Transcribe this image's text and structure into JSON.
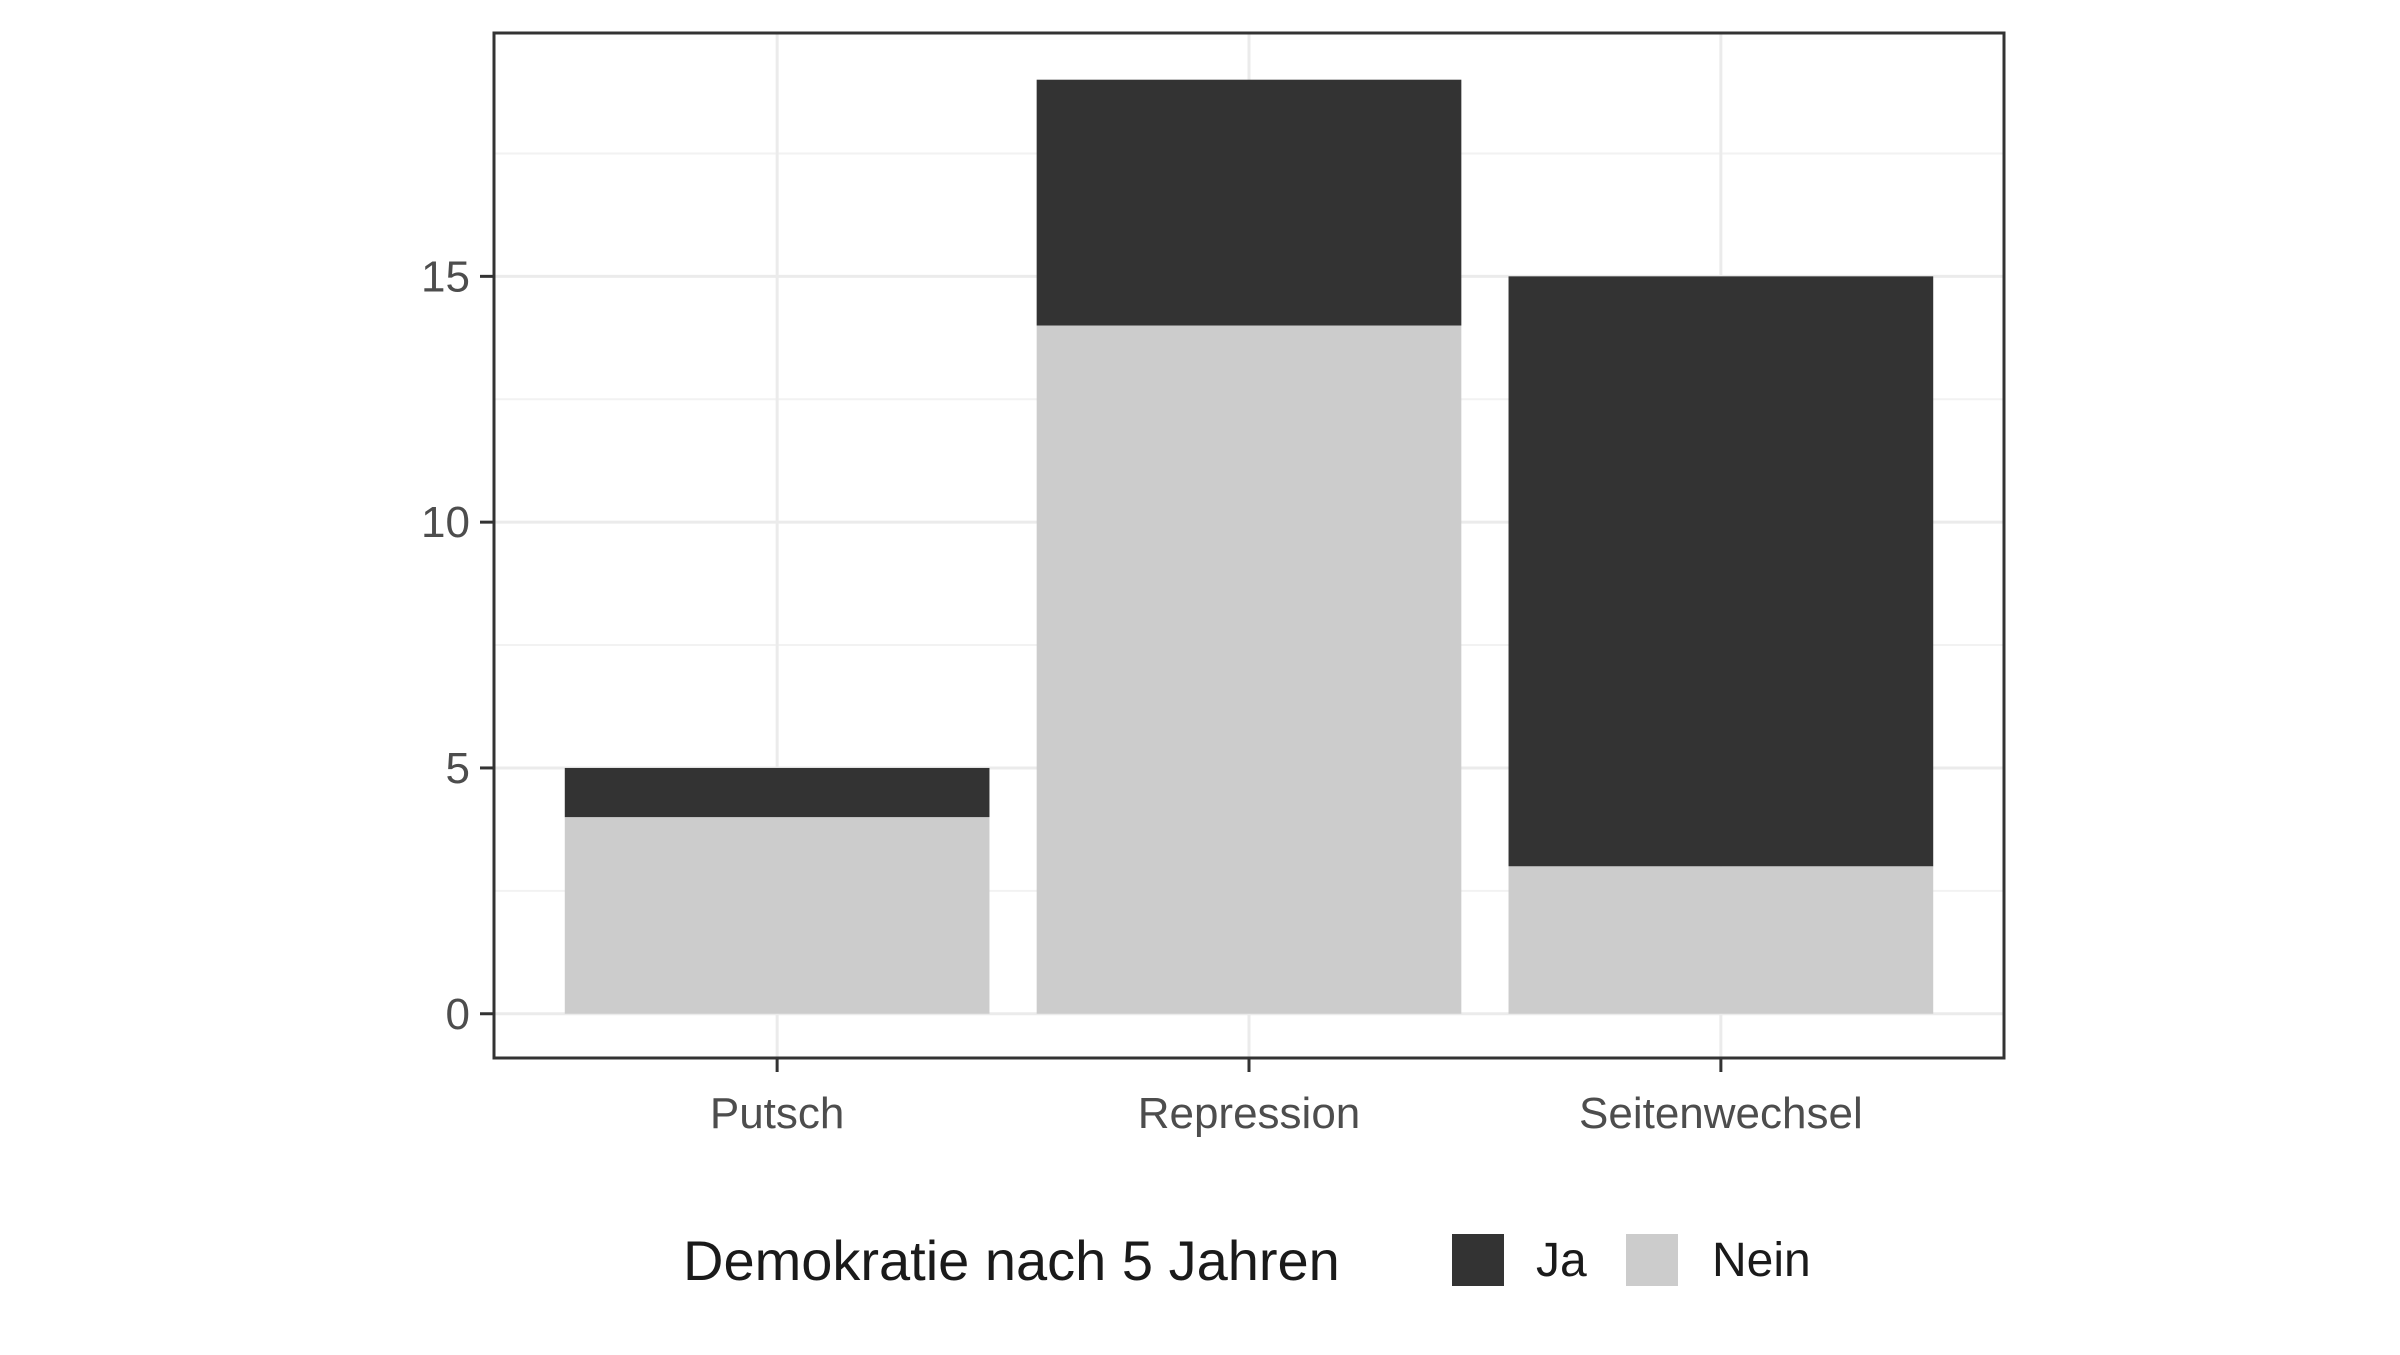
{
  "chart_data": {
    "type": "bar",
    "stacked": true,
    "title": "",
    "xlabel": "",
    "ylabel": "",
    "categories": [
      "Putsch",
      "Repression",
      "Seitenwechsel"
    ],
    "series": [
      {
        "name": "Nein",
        "values": [
          4,
          14,
          3
        ],
        "color": "#cccccc"
      },
      {
        "name": "Ja",
        "values": [
          1,
          5,
          12
        ],
        "color": "#333333"
      }
    ],
    "ylim": [
      -0.9,
      19.95
    ],
    "y_ticks": [
      0,
      5,
      10,
      15
    ],
    "grid": true,
    "legend": {
      "title": "Demokratie nach 5 Jahren",
      "position": "bottom",
      "order": [
        "Ja",
        "Nein"
      ]
    }
  }
}
